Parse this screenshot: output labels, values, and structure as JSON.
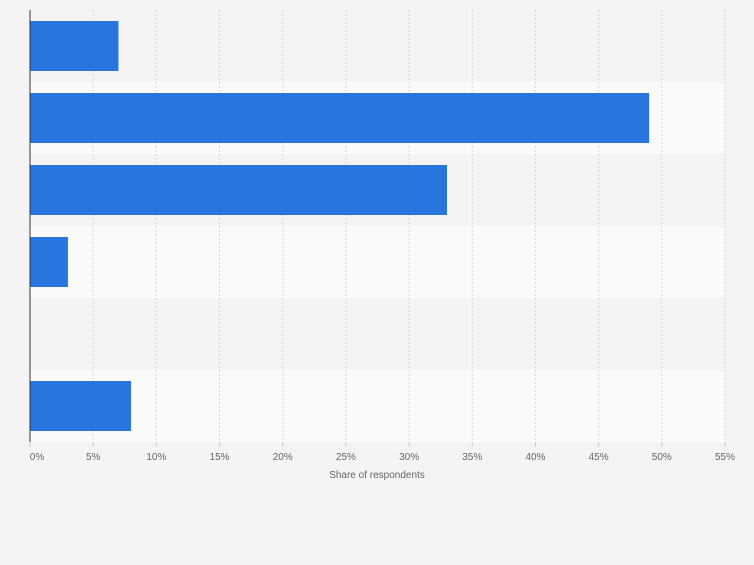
{
  "chart_data": {
    "type": "bar",
    "orientation": "horizontal",
    "categories": [
      "",
      "",
      "",
      "",
      "",
      ""
    ],
    "values": [
      7,
      49,
      33,
      3,
      0,
      8
    ],
    "xlabel": "Share of respondents",
    "ylabel": "",
    "xlim": [
      0,
      55
    ],
    "x_ticks": [
      0,
      5,
      10,
      15,
      20,
      25,
      30,
      35,
      40,
      45,
      50,
      55
    ],
    "x_tick_labels": [
      "0%",
      "5%",
      "10%",
      "15%",
      "20%",
      "25%",
      "30%",
      "35%",
      "40%",
      "45%",
      "50%",
      "55%"
    ],
    "grid": "vertical dashed",
    "bar_color": "#2775dd",
    "band_colors": [
      "#f4f4f4",
      "#fafafa"
    ],
    "axis_color": "#333333",
    "grid_color": "#d6d6d6"
  }
}
